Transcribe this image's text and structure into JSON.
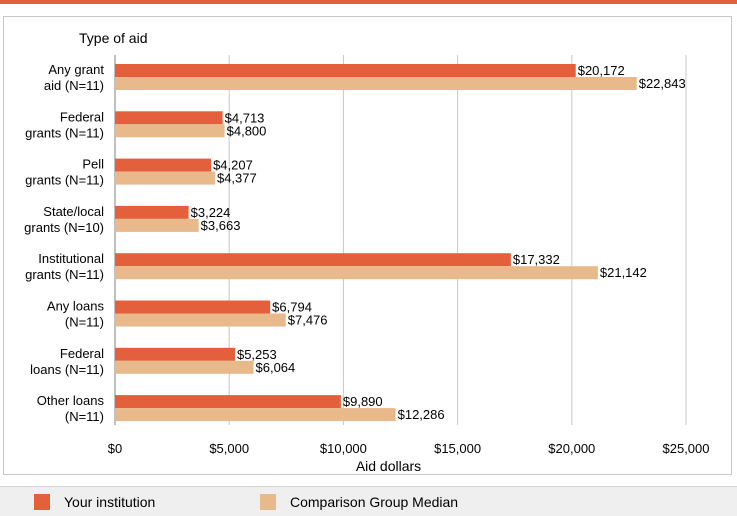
{
  "colors": {
    "accent": "#e4603c",
    "institution": "#e4603c",
    "comparison": "#e8b98a",
    "grid": "#c8c8c8",
    "axis": "#808080"
  },
  "chart_data": {
    "type": "bar",
    "orientation": "horizontal",
    "title": "Type of aid",
    "xlabel": "Aid dollars",
    "ylabel": "",
    "xlim": [
      0,
      25000
    ],
    "xticks": [
      0,
      5000,
      10000,
      15000,
      20000,
      25000
    ],
    "xtick_labels": [
      "$0",
      "$5,000",
      "$10,000",
      "$15,000",
      "$20,000",
      "$25,000"
    ],
    "grid": "vertical",
    "legend_placement": "bottom",
    "categories": [
      [
        "Any grant",
        "aid (N=11)"
      ],
      [
        "Federal",
        "grants (N=11)"
      ],
      [
        "Pell",
        "grants (N=11)"
      ],
      [
        "State/local",
        "grants (N=10)"
      ],
      [
        "Institutional",
        "grants (N=11)"
      ],
      [
        "Any loans",
        "(N=11)"
      ],
      [
        "Federal",
        "loans (N=11)"
      ],
      [
        "Other loans",
        "(N=11)"
      ]
    ],
    "series": [
      {
        "name": "Your institution",
        "values": [
          20172,
          4713,
          4207,
          3224,
          17332,
          6794,
          5253,
          9890
        ],
        "labels": [
          "$20,172",
          "$4,713",
          "$4,207",
          "$3,224",
          "$17,332",
          "$6,794",
          "$5,253",
          "$9,890"
        ]
      },
      {
        "name": "Comparison Group Median",
        "values": [
          22843,
          4800,
          4377,
          3663,
          21142,
          7476,
          6064,
          12286
        ],
        "labels": [
          "$22,843",
          "$4,800",
          "$4,377",
          "$3,663",
          "$21,142",
          "$7,476",
          "$6,064",
          "$12,286"
        ]
      }
    ]
  },
  "legend": {
    "items": [
      "Your institution",
      "Comparison Group Median"
    ]
  }
}
